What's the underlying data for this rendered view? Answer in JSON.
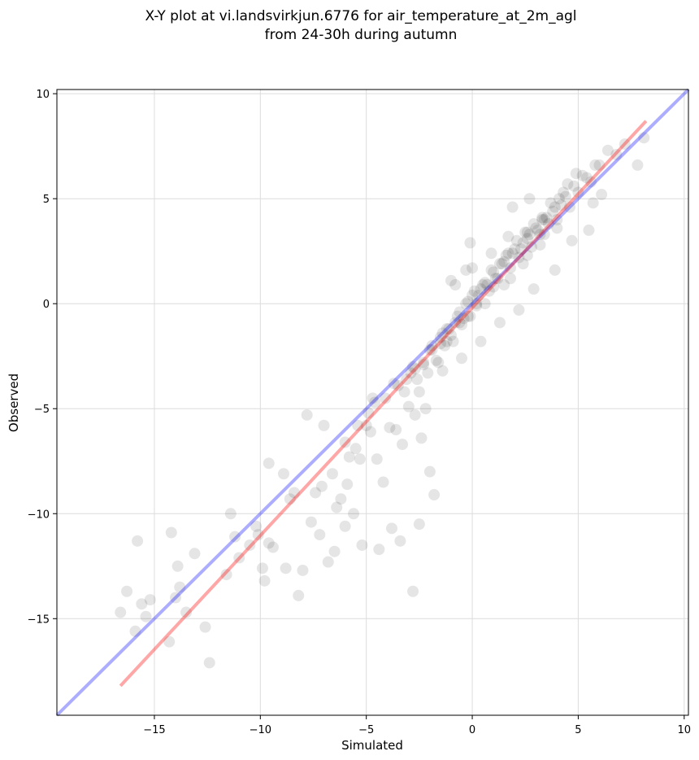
{
  "chart_data": {
    "type": "scatter",
    "title": [
      "X-Y plot at vi.landsvirkjun.6776 for air_temperature_at_2m_agl",
      "from 24-30h during autumn"
    ],
    "xlabel": "Simulated",
    "ylabel": "Observed",
    "xlim": [
      -19.6,
      10.2
    ],
    "ylim": [
      -19.6,
      10.2
    ],
    "xticks": [
      -15,
      -10,
      -5,
      0,
      5,
      10
    ],
    "yticks": [
      -15,
      -10,
      -5,
      0,
      5,
      10
    ],
    "grid": true,
    "series": [
      {
        "kind": "scatter",
        "color": "#000000",
        "x": [
          -16.6,
          -16.3,
          -15.8,
          -15.6,
          -15.9,
          -15.4,
          -15.2,
          -14.3,
          -14.0,
          -13.8,
          -13.5,
          -13.1,
          -12.6,
          -12.4,
          -14.2,
          -13.9,
          -11.4,
          -11.6,
          -11.2,
          -11.0,
          -10.5,
          -10.1,
          -9.9,
          -9.6,
          -9.4,
          -9.8,
          -10.2,
          -8.9,
          -8.6,
          -8.2,
          -8.0,
          -7.8,
          -7.4,
          -7.1,
          -7.0,
          -6.6,
          -6.4,
          -6.0,
          -5.8,
          -5.5,
          -5.2,
          -5.0,
          -4.7,
          -9.6,
          -8.4,
          -8.8,
          -7.6,
          -7.2,
          -6.8,
          -6.5,
          -6.2,
          -5.9,
          -5.6,
          -5.3,
          -4.9,
          -4.5,
          -4.2,
          -3.9,
          -3.6,
          -3.3,
          -3.0,
          -2.7,
          -2.4,
          -2.2,
          -2.0,
          -6.0,
          -5.4,
          -4.8,
          -4.4,
          -3.8,
          -3.4,
          -2.8,
          -2.5,
          -1.8,
          -4.6,
          -4.1,
          -3.7,
          -3.2,
          -2.9,
          -2.6,
          -2.3,
          -2.0,
          -1.7,
          -1.5,
          -1.2,
          -1.0,
          -0.8,
          -0.6,
          -0.4,
          -0.2,
          0.0,
          0.2,
          0.4,
          0.6,
          0.8,
          1.0,
          1.2,
          1.4,
          1.6,
          1.8,
          2.0,
          2.2,
          2.4,
          2.6,
          2.8,
          3.0,
          3.2,
          3.4,
          3.6,
          3.8,
          4.0,
          4.2,
          4.4,
          4.6,
          4.8,
          5.0,
          5.2,
          5.4,
          5.6,
          5.8,
          6.0,
          6.4,
          6.8,
          7.2,
          7.8,
          8.1,
          -3.5,
          -3.1,
          -2.7,
          -2.3,
          -1.9,
          -1.5,
          -1.1,
          -0.7,
          -0.3,
          0.1,
          0.5,
          0.9,
          1.3,
          1.7,
          2.1,
          2.5,
          2.9,
          3.3,
          3.7,
          4.1,
          4.5,
          4.9,
          -2.5,
          -2.1,
          -1.6,
          -1.3,
          -0.9,
          -0.5,
          -0.1,
          0.3,
          0.7,
          1.1,
          1.5,
          1.9,
          2.3,
          2.7,
          3.1,
          3.5,
          3.9,
          4.3,
          -1.9,
          -1.4,
          -0.6,
          0.2,
          1.0,
          1.8,
          2.6,
          3.4,
          -1.2,
          -0.2,
          0.6,
          1.5,
          2.4,
          3.2,
          4.0,
          -0.8,
          0.0,
          0.9,
          1.7,
          2.6,
          3.3,
          5.7,
          6.1,
          5.5,
          4.7,
          3.9,
          2.9,
          2.2,
          1.3,
          0.4,
          -0.5,
          -1.4,
          -0.1,
          1.9,
          2.7,
          -2.8,
          -1.0,
          -0.3
        ],
        "y": [
          -14.7,
          -13.7,
          -11.3,
          -14.3,
          -15.6,
          -14.9,
          -14.1,
          -16.1,
          -14.0,
          -13.5,
          -14.7,
          -11.9,
          -15.4,
          -17.1,
          -10.9,
          -12.5,
          -10.0,
          -12.9,
          -11.1,
          -12.1,
          -11.5,
          -11.0,
          -12.6,
          -7.6,
          -11.6,
          -13.2,
          -10.6,
          -8.1,
          -9.3,
          -13.9,
          -12.7,
          -5.3,
          -9.0,
          -8.7,
          -5.8,
          -8.1,
          -9.7,
          -10.6,
          -7.3,
          -6.9,
          -11.5,
          -5.8,
          -4.5,
          -11.4,
          -9.0,
          -12.6,
          -10.4,
          -11.0,
          -12.3,
          -11.8,
          -9.3,
          -8.6,
          -10.0,
          -7.4,
          -5.2,
          -7.4,
          -8.5,
          -5.9,
          -6.0,
          -6.7,
          -4.9,
          -5.3,
          -6.4,
          -5.0,
          -8.0,
          -6.6,
          -5.8,
          -6.1,
          -11.7,
          -10.7,
          -11.3,
          -13.7,
          -10.5,
          -9.1,
          -4.7,
          -4.5,
          -3.8,
          -4.2,
          -3.3,
          -3.6,
          -2.9,
          -2.2,
          -2.7,
          -1.9,
          -1.2,
          -1.5,
          -0.9,
          -0.4,
          -0.7,
          0.1,
          0.4,
          0.0,
          0.7,
          1.0,
          0.6,
          1.5,
          1.2,
          1.9,
          2.3,
          1.7,
          2.6,
          2.2,
          2.9,
          3.1,
          2.7,
          3.6,
          3.3,
          4.0,
          3.8,
          4.4,
          4.0,
          4.7,
          5.1,
          4.6,
          5.6,
          5.3,
          6.1,
          6.0,
          5.8,
          6.6,
          6.6,
          7.3,
          7.1,
          7.6,
          6.6,
          7.9,
          -3.9,
          -3.6,
          -3.1,
          -2.8,
          -2.2,
          -1.6,
          -1.2,
          -0.6,
          0.0,
          0.6,
          0.9,
          1.6,
          1.9,
          2.4,
          3.0,
          3.4,
          3.8,
          4.1,
          4.8,
          5.0,
          5.7,
          6.2,
          -4.2,
          -3.3,
          -2.8,
          -2.0,
          -1.8,
          -1.0,
          -0.6,
          0.4,
          0.9,
          1.2,
          2.0,
          2.4,
          2.6,
          3.3,
          3.5,
          4.1,
          4.6,
          5.3,
          -2.0,
          -1.4,
          -0.9,
          -0.1,
          0.8,
          1.2,
          2.3,
          3.3,
          -1.8,
          -0.6,
          0.0,
          0.9,
          1.9,
          2.8,
          3.6,
          0.9,
          1.7,
          2.4,
          3.2,
          3.4,
          4.0,
          4.8,
          5.2,
          3.5,
          3.0,
          1.6,
          0.7,
          -0.3,
          -0.9,
          -1.8,
          -2.6,
          -3.2,
          2.9,
          4.6,
          5.0,
          -3.0,
          1.1,
          1.6
        ],
        "marker_alpha": 0.1
      },
      {
        "kind": "line",
        "color": "#0000ff",
        "line_alpha": 0.32,
        "x": [
          -19.6,
          10.2
        ],
        "y": [
          -19.6,
          10.2
        ]
      },
      {
        "kind": "line",
        "color": "#ff0000",
        "line_alpha": 0.35,
        "x": [
          -16.6,
          8.2
        ],
        "y": [
          -18.2,
          8.7
        ]
      }
    ]
  }
}
